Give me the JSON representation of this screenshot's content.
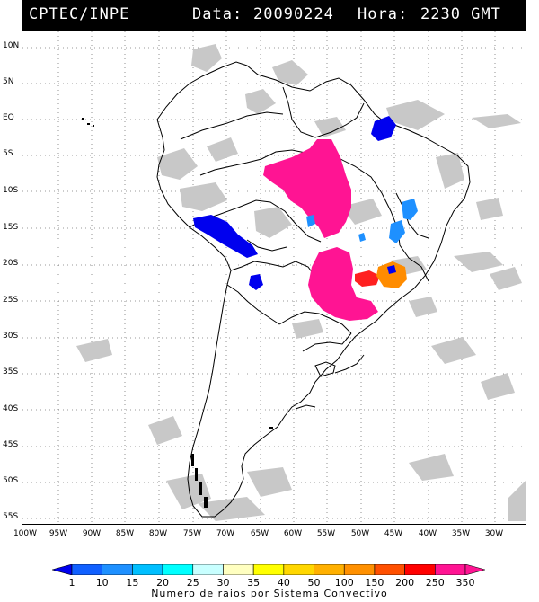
{
  "header": {
    "source": "CPTEC/INPE",
    "date_label": "Data:",
    "date": "20090224",
    "time_label": "Hora:",
    "time": "2230 GMT"
  },
  "lat_labels": [
    "10N",
    "5N",
    "EQ",
    "5S",
    "10S",
    "15S",
    "20S",
    "25S",
    "30S",
    "35S",
    "40S",
    "45S",
    "50S",
    "55S"
  ],
  "lon_labels": [
    "100W",
    "95W",
    "90W",
    "85W",
    "80W",
    "75W",
    "70W",
    "65W",
    "60W",
    "55W",
    "50W",
    "45W",
    "40W",
    "35W",
    "30W"
  ],
  "legend": {
    "values": [
      "1",
      "10",
      "15",
      "20",
      "25",
      "30",
      "35",
      "40",
      "50",
      "100",
      "150",
      "200",
      "250",
      "350"
    ],
    "colors": [
      "#0000ee",
      "#1060ff",
      "#1e90ff",
      "#00bfff",
      "#00ffff",
      "#c8ffff",
      "#ffffc0",
      "#ffff00",
      "#ffd700",
      "#ffb000",
      "#ff9000",
      "#ff5000",
      "#ff0000",
      "#ff1493",
      "#ff1493"
    ],
    "title": "Numero de raios por Sistema Convectivo"
  },
  "colors": {
    "cloud": "#c8c8c8",
    "coast": "#000000",
    "background": "#ffffff"
  }
}
